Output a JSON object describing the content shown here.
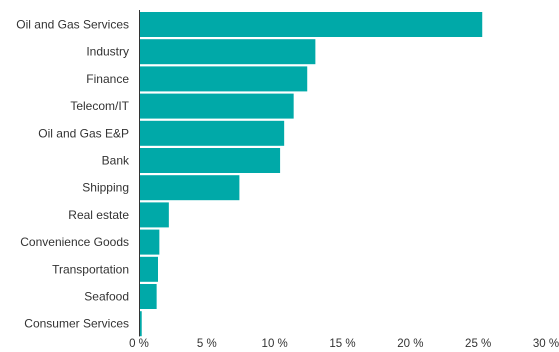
{
  "chart_data": {
    "type": "bar",
    "orientation": "horizontal",
    "categories": [
      "Oil and Gas Services",
      "Industry",
      "Finance",
      "Telecom/IT",
      "Oil and Gas E&P",
      "Bank",
      "Shipping",
      "Real estate",
      "Convenience Goods",
      "Transportation",
      "Seafood",
      "Consumer Services"
    ],
    "values": [
      25.3,
      13.0,
      12.4,
      11.4,
      10.7,
      10.4,
      7.4,
      2.2,
      1.5,
      1.4,
      1.3,
      0.2
    ],
    "xlim": [
      0,
      30
    ],
    "ticks": [
      {
        "value": 0,
        "label": "0 %"
      },
      {
        "value": 5,
        "label": "5 %"
      },
      {
        "value": 10,
        "label": "10 %"
      },
      {
        "value": 15,
        "label": "15 %"
      },
      {
        "value": 20,
        "label": "20 %"
      },
      {
        "value": 25,
        "label": "25 %"
      },
      {
        "value": 30,
        "label": "30 %"
      }
    ],
    "bar_color": "#00a9a8",
    "grid": false,
    "legend": "none"
  }
}
